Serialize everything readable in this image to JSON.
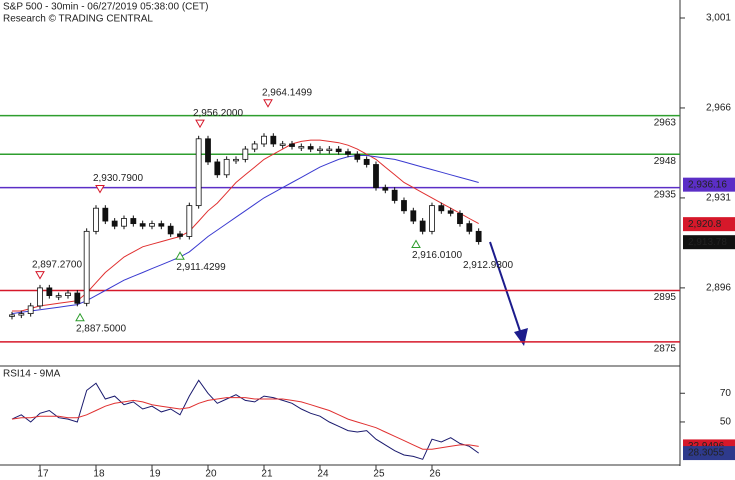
{
  "chart_data": [
    {
      "type": "candlestick",
      "title": "S&P 500 - 30min - 06/27/2019 05:38:00 (CET)",
      "subtitle": "Research © TRADING CENTRAL",
      "categories": [
        null,
        null,
        null,
        "17",
        null,
        null,
        null,
        null,
        null,
        "18",
        null,
        null,
        null,
        null,
        null,
        "19",
        null,
        null,
        null,
        null,
        null,
        "20",
        null,
        null,
        null,
        null,
        null,
        "21",
        null,
        null,
        null,
        null,
        null,
        "24",
        null,
        null,
        null,
        null,
        null,
        "25",
        null,
        null,
        null,
        null,
        null,
        "26",
        null,
        null,
        null,
        null,
        null
      ],
      "values": [
        2885.5,
        2886,
        2889,
        2896,
        2893,
        2893,
        2894,
        2890,
        2918,
        2927,
        2922,
        2920,
        2923,
        2921,
        2920,
        2921,
        2920,
        2917,
        2916,
        2928,
        2954,
        2945,
        2940,
        2946,
        2946,
        2950,
        2952,
        2955,
        2952,
        2952,
        2951,
        2951,
        2950,
        2950,
        2950,
        2949,
        2948,
        2946,
        2944,
        2935,
        2934,
        2930,
        2926,
        2922,
        2918,
        2928,
        2926,
        2925,
        2921,
        2918,
        2914
      ],
      "color": "#111111",
      "series": [
        {
          "color": "#e03030",
          "values": [
            2887,
            2887,
            2888,
            2889,
            2889.5,
            2890,
            2890.5,
            2891,
            2894,
            2898,
            2902,
            2905,
            2908,
            2910,
            2912,
            2913,
            2914,
            2915,
            2916,
            2918,
            2922,
            2926,
            2929,
            2933,
            2937,
            2940,
            2943,
            2946,
            2948,
            2950,
            2952,
            2953,
            2953.5,
            2953.5,
            2953,
            2952.5,
            2951.5,
            2950,
            2948,
            2946,
            2943,
            2940,
            2937,
            2935,
            2933,
            2931,
            2929,
            2927,
            2925,
            2923,
            2921
          ]
        },
        {
          "color": "#3a3ad0",
          "values": [
            2886,
            2886.5,
            2887,
            2887.5,
            2888,
            2888.5,
            2889,
            2889.5,
            2891,
            2893,
            2895,
            2897,
            2899,
            2900.5,
            2902,
            2903.5,
            2905,
            2906.5,
            2908,
            2910,
            2913,
            2916,
            2918.5,
            2921,
            2923.5,
            2926,
            2928.5,
            2931,
            2933,
            2935,
            2937,
            2939,
            2941,
            2943,
            2944.5,
            2946,
            2947,
            2947.5,
            2947.5,
            2947,
            2946.5,
            2946,
            2945,
            2944,
            2943,
            2942,
            2941,
            2940,
            2939,
            2938,
            2937
          ]
        }
      ],
      "levels": [
        {
          "value": 2963,
          "color": "#2e9e2e"
        },
        {
          "value": 2948,
          "color": "#2e9e2e"
        },
        {
          "value": 2935,
          "color": "#5b2ec6"
        },
        {
          "value": 2895,
          "color": "#d6182a"
        },
        {
          "value": 2875,
          "color": "#d6182a"
        }
      ],
      "annotations": [
        {
          "value": 2964.1499,
          "label": "2,964.1499",
          "kind": "high"
        },
        {
          "value": 2956.2,
          "label": "2,956.2000",
          "kind": "high"
        },
        {
          "value": 2930.79,
          "label": "2,930.7900",
          "kind": "high"
        },
        {
          "value": 2897.27,
          "label": "2,897.2700",
          "kind": "high"
        },
        {
          "value": 2887.5,
          "label": "2,887.5000",
          "kind": "low"
        },
        {
          "value": 2911.4299,
          "label": "2,911.4299",
          "kind": "low"
        },
        {
          "value": 2916.01,
          "label": "2,916.0100",
          "kind": "low"
        },
        {
          "value": 2912.93,
          "label": "2,912.9300"
        }
      ],
      "price_tags": [
        {
          "value": 2936.16,
          "label": "2,936.16",
          "color": "#5b2ec6"
        },
        {
          "value": 2920.8,
          "label": "2,920.8",
          "color": "#d6182a"
        },
        {
          "value": 2913.78,
          "label": "2,913.78",
          "color": "#111111"
        }
      ],
      "ylim": [
        2866,
        3008
      ],
      "yticks": [
        {
          "value": 3001,
          "label": "3,001"
        },
        {
          "value": 2966,
          "label": "2,966"
        },
        {
          "value": 2931,
          "label": "2,931"
        },
        {
          "value": 2896,
          "label": "2,896"
        }
      ]
    },
    {
      "type": "line",
      "title": "RSI14 - 9MA",
      "series": [
        {
          "color": "#1a1a6e",
          "values": [
            52,
            55,
            50,
            56,
            58,
            53,
            52,
            50,
            72,
            77,
            66,
            68,
            62,
            64,
            59,
            61,
            57,
            59,
            55,
            68,
            79,
            70,
            63,
            66,
            69,
            65,
            64,
            68,
            67,
            65,
            63,
            59,
            56,
            54,
            50,
            47,
            44,
            43,
            44,
            38,
            34,
            30,
            27,
            26,
            24,
            38,
            36,
            39,
            35,
            33,
            28.3055
          ]
        },
        {
          "color": "#e03030",
          "values": [
            52,
            53,
            53,
            54,
            54,
            54,
            53,
            53,
            55,
            58,
            61,
            63,
            64,
            65,
            64,
            62,
            61,
            60,
            59,
            60,
            63,
            65,
            66,
            67,
            67,
            67,
            66,
            66,
            66,
            66,
            65,
            64,
            62,
            60,
            58,
            55,
            52,
            50,
            48,
            46,
            43,
            40,
            37,
            34,
            31,
            31,
            32,
            33,
            34,
            34,
            32.9496
          ]
        }
      ],
      "price_tags": [
        {
          "value": 32.9496,
          "label": "32.9496",
          "color": "#d6182a"
        },
        {
          "value": 28.3055,
          "label": "28.3055",
          "color": "#2e3a8c"
        }
      ],
      "ylim": [
        20,
        89
      ],
      "yticks": [
        70,
        50
      ]
    }
  ]
}
